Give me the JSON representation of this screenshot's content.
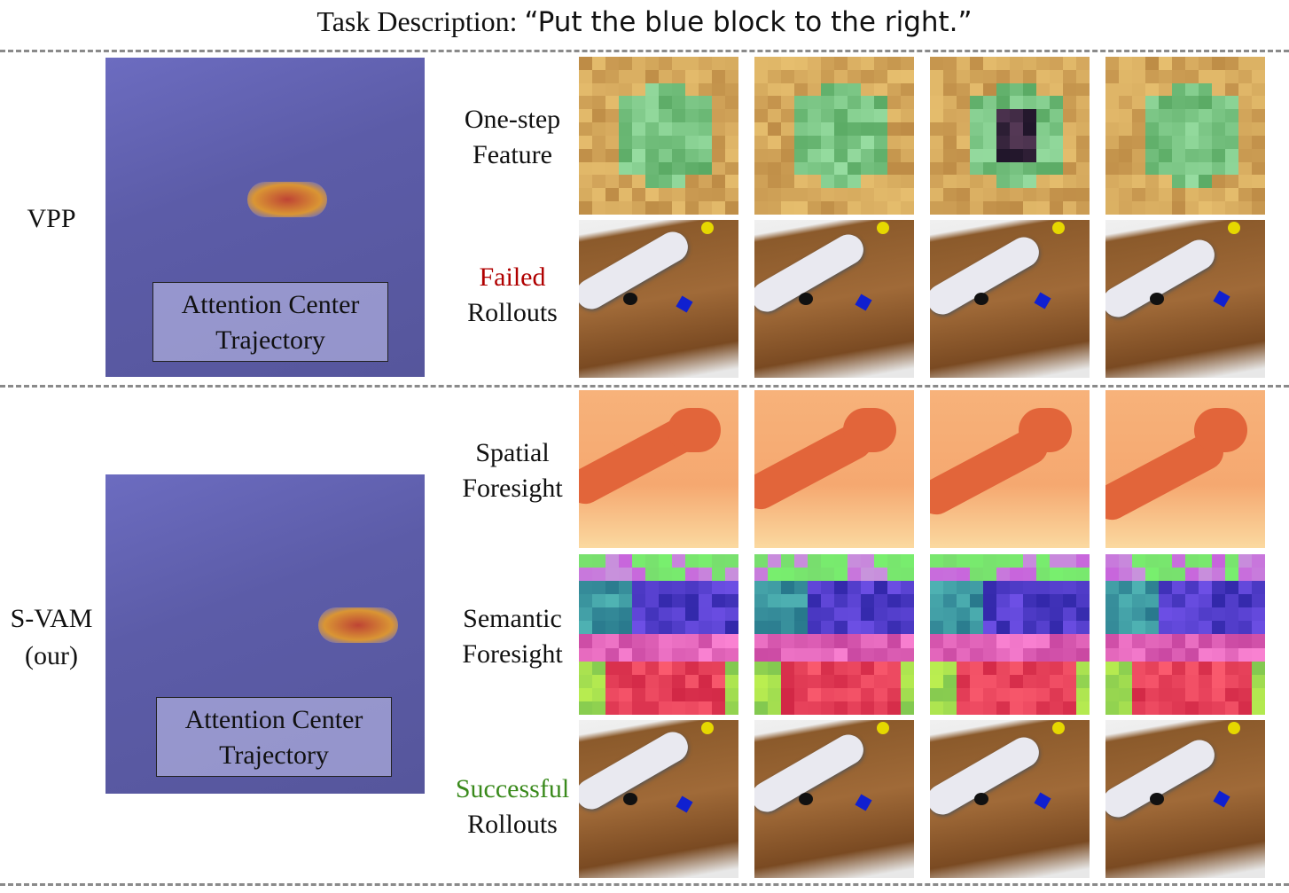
{
  "header": {
    "label": "Task Description:",
    "task": "“Put the blue block to the right.”"
  },
  "sections": [
    {
      "method": [
        "VPP"
      ],
      "attention": [
        "Attention Center",
        "Trajectory"
      ],
      "rows": [
        [
          "One-step",
          "Feature"
        ],
        [
          "Failed",
          "Rollouts"
        ]
      ]
    },
    {
      "method": [
        "S-VAM",
        "(our)"
      ],
      "attention": [
        "Attention Center",
        "Trajectory"
      ],
      "rows": [
        [
          "Spatial",
          "Foresight"
        ],
        [
          "Semantic",
          "Foresight"
        ],
        [
          "Successful",
          "Rollouts"
        ]
      ]
    }
  ]
}
